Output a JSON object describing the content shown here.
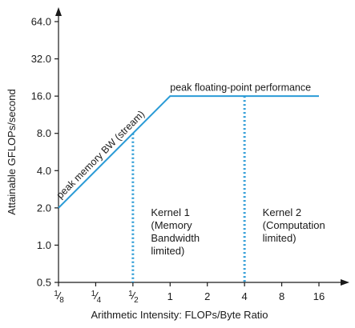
{
  "chart_data": {
    "type": "line",
    "title": "",
    "xlabel": "Arithmetic Intensity: FLOPs/Byte Ratio",
    "ylabel": "Attainable GFLOPs/second",
    "xscale": "log2",
    "yscale": "log2",
    "xlim": [
      0.125,
      16
    ],
    "ylim": [
      0.5,
      64
    ],
    "grid": false,
    "x_ticks": [
      {
        "value": 0.125,
        "num": "1",
        "den": "8"
      },
      {
        "value": 0.25,
        "num": "1",
        "den": "4"
      },
      {
        "value": 0.5,
        "num": "1",
        "den": "2"
      },
      {
        "value": 1,
        "label": "1"
      },
      {
        "value": 2,
        "label": "2"
      },
      {
        "value": 4,
        "label": "4"
      },
      {
        "value": 8,
        "label": "8"
      },
      {
        "value": 16,
        "label": "16"
      }
    ],
    "y_ticks": [
      {
        "value": 0.5,
        "label": "0.5"
      },
      {
        "value": 1,
        "label": "1.0"
      },
      {
        "value": 2,
        "label": "2.0"
      },
      {
        "value": 4,
        "label": "4.0"
      },
      {
        "value": 8,
        "label": "8.0"
      },
      {
        "value": 16,
        "label": "16.0"
      },
      {
        "value": 32,
        "label": "32.0"
      },
      {
        "value": 64,
        "label": "64.0"
      }
    ],
    "series": [
      {
        "color": "#2a9bd6",
        "x": [
          0.125,
          1,
          16
        ],
        "y": [
          2,
          16,
          16
        ]
      }
    ],
    "annotations": [
      {
        "id": "bw",
        "text": "peak memory BW (stream)",
        "x": 0.13,
        "y": 2.35,
        "angle_along": "slope"
      },
      {
        "id": "peak",
        "text": "peak floating-point performance",
        "x": 1,
        "y": 17.6
      }
    ],
    "kernels": [
      {
        "name": "kernel-1",
        "x": 0.5,
        "y_top": 8,
        "lines": [
          "Kernel 1",
          "(Memory",
          "Bandwidth",
          "limited)"
        ],
        "label_x": 0.7,
        "label_y": 1.72
      },
      {
        "name": "kernel-2",
        "x": 4,
        "y_top": 16,
        "lines": [
          "Kernel 2",
          "(Computation",
          "limited)"
        ],
        "label_x": 5.6,
        "label_y": 1.72
      }
    ],
    "vline_color": "#2a9bd6"
  }
}
